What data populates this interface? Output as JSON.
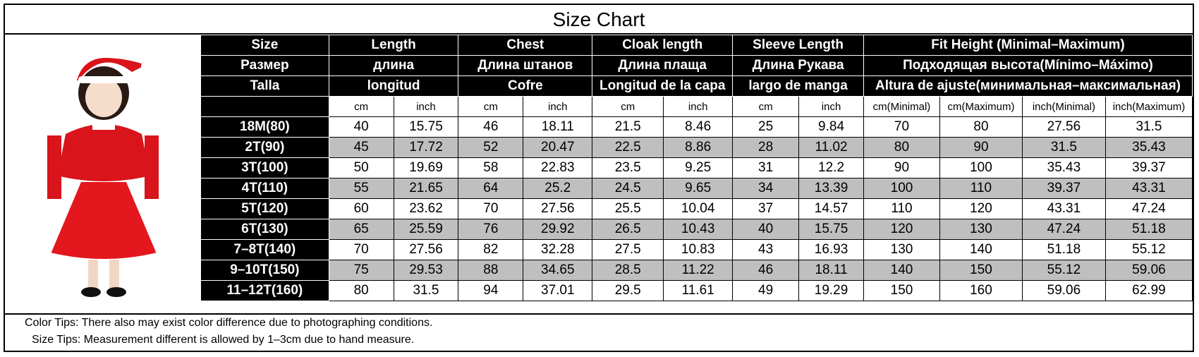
{
  "header": {
    "title": "Size Chart"
  },
  "table": {
    "group_rows": [
      [
        "Size",
        "Length",
        "Chest",
        "Cloak length",
        "Sleeve Length",
        "Fit Height (Minimal–Maximum)"
      ],
      [
        "Размер",
        "длина",
        "Длина штанов",
        "Длина плаща",
        "Длина Рукава",
        "Подходящая высота(Mínimo–Máximo)"
      ],
      [
        "Talla",
        "longitud",
        "Cofre",
        "Longitud de la capa",
        "largo de manga",
        "Altura de ajuste(минимальная–максимальная)"
      ]
    ],
    "units": [
      "cm",
      "inch",
      "cm",
      "inch",
      "cm",
      "inch",
      "cm",
      "inch",
      "cm(Minimal)",
      "cm(Maximum)",
      "inch(Minimal)",
      "inch(Maximum)"
    ],
    "rows": [
      [
        "18M(80)",
        40,
        15.75,
        46,
        18.11,
        21.5,
        8.46,
        25,
        9.84,
        70,
        80,
        27.56,
        31.5
      ],
      [
        "2T(90)",
        45,
        17.72,
        52,
        20.47,
        22.5,
        8.86,
        28,
        11.02,
        80,
        90,
        31.5,
        35.43
      ],
      [
        "3T(100)",
        50,
        19.69,
        58,
        22.83,
        23.5,
        9.25,
        31,
        12.2,
        90,
        100,
        35.43,
        39.37
      ],
      [
        "4T(110)",
        55,
        21.65,
        64,
        25.2,
        24.5,
        9.65,
        34,
        13.39,
        100,
        110,
        39.37,
        43.31
      ],
      [
        "5T(120)",
        60,
        23.62,
        70,
        27.56,
        25.5,
        10.04,
        37,
        14.57,
        110,
        120,
        43.31,
        47.24
      ],
      [
        "6T(130)",
        65,
        25.59,
        76,
        29.92,
        26.5,
        10.43,
        40,
        15.75,
        120,
        130,
        47.24,
        51.18
      ],
      [
        "7–8T(140)",
        70,
        27.56,
        82,
        32.28,
        27.5,
        10.83,
        43,
        16.93,
        130,
        140,
        51.18,
        55.12
      ],
      [
        "9–10T(150)",
        75,
        29.53,
        88,
        34.65,
        28.5,
        11.22,
        46,
        18.11,
        140,
        150,
        55.12,
        59.06
      ],
      [
        "11–12T(160)",
        80,
        31.5,
        94,
        37.01,
        29.5,
        11.61,
        49,
        19.29,
        150,
        160,
        59.06,
        62.99
      ]
    ]
  },
  "footer": {
    "notes": [
      "Color Tips: There also may exist color difference due to photographing conditions.",
      "Size Tips: Measurement different is allowed by 1–3cm due to hand measure."
    ]
  }
}
